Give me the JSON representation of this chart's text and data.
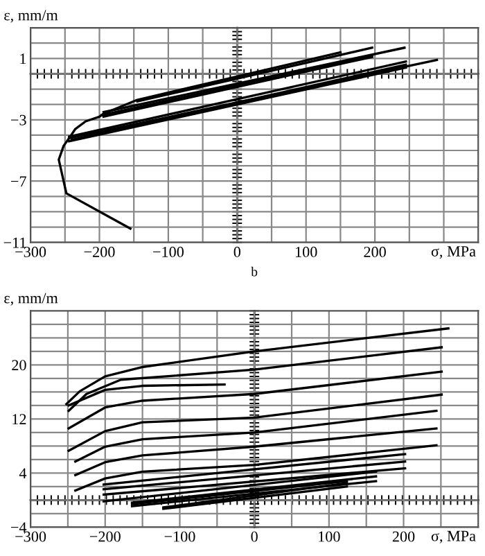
{
  "chart_data": [
    {
      "type": "line",
      "ylabel": "ε, mm/m",
      "xlabel": "σ, MPa",
      "xlim": [
        -300,
        350
      ],
      "ylim": [
        -11,
        3
      ],
      "xticks": [
        -300,
        {
          "value": -250,
          "label": null
        },
        -200,
        {
          "value": -150,
          "label": null
        },
        -100,
        {
          "value": -50,
          "label": null
        },
        0,
        {
          "value": 50,
          "label": null
        },
        100,
        {
          "value": 150,
          "label": null
        },
        200,
        {
          "value": 250,
          "label": null
        },
        {
          "value": 300,
          "label": null
        }
      ],
      "yticks": [
        -11,
        {
          "value": -10,
          "label": null
        },
        {
          "value": -9,
          "label": null
        },
        {
          "value": -8,
          "label": null
        },
        -7,
        {
          "value": -6,
          "label": null
        },
        {
          "value": -5,
          "label": null
        },
        {
          "value": -4,
          "label": null
        },
        -3,
        {
          "value": -2,
          "label": null
        },
        {
          "value": -1,
          "label": null
        },
        {
          "value": 0,
          "label": null
        },
        1,
        {
          "value": 2,
          "label": null
        },
        {
          "value": 3,
          "label": null
        }
      ],
      "grid": true,
      "legend": false,
      "series": [
        {
          "color": "#000000",
          "x": [
            -155,
            -248,
            -259,
            -252,
            -244,
            -235,
            -220,
            -200,
            -194,
            -145,
            150
          ],
          "values": [
            -10.1,
            -7.8,
            -5.6,
            -4.7,
            -4.2,
            -3.6,
            -3.1,
            -2.8,
            -2.6,
            -1.7,
            1.4
          ]
        },
        {
          "color": "#000000",
          "x": [
            -244,
            290
          ],
          "values": [
            -4.2,
            0.9
          ]
        },
        {
          "color": "#000000",
          "x": [
            -244,
            245
          ],
          "values": [
            -4.4,
            0.4
          ]
        },
        {
          "color": "#000000",
          "x": [
            -244,
            245
          ],
          "values": [
            -4.1,
            0.8
          ]
        },
        {
          "color": "#000000",
          "x": [
            -240,
            245
          ],
          "values": [
            -4.3,
            0.6
          ]
        },
        {
          "color": "#000000",
          "x": [
            -197,
            196
          ],
          "values": [
            -2.7,
            1.2
          ]
        },
        {
          "color": "#000000",
          "x": [
            -194,
            196
          ],
          "values": [
            -2.8,
            1.1
          ]
        },
        {
          "color": "#000000",
          "x": [
            -194,
            243
          ],
          "values": [
            -2.5,
            1.7
          ]
        },
        {
          "color": "#000000",
          "x": [
            -145,
            196
          ],
          "values": [
            -1.8,
            1.7
          ]
        }
      ]
    },
    {
      "type": "line",
      "title": "b",
      "ylabel": "ε, mm/m",
      "xlabel": "σ, MPa",
      "xlim": [
        -300,
        300
      ],
      "ylim": [
        -4,
        28
      ],
      "xticks": [
        -300,
        {
          "value": -250,
          "label": null
        },
        -200,
        {
          "value": -150,
          "label": null
        },
        -100,
        {
          "value": -50,
          "label": null
        },
        0,
        {
          "value": 50,
          "label": null
        },
        100,
        {
          "value": 150,
          "label": null
        },
        200,
        {
          "value": 250,
          "label": null
        }
      ],
      "yticks": [
        -4,
        {
          "value": -2,
          "label": null
        },
        {
          "value": 0,
          "label": null
        },
        {
          "value": 2,
          "label": null
        },
        4,
        {
          "value": 6,
          "label": null
        },
        {
          "value": 8,
          "label": null
        },
        {
          "value": 10,
          "label": null
        },
        12,
        {
          "value": 14,
          "label": null
        },
        {
          "value": 16,
          "label": null
        },
        {
          "value": 18,
          "label": null
        },
        20,
        {
          "value": 22,
          "label": null
        },
        {
          "value": 24,
          "label": null
        },
        {
          "value": 26,
          "label": null
        }
      ],
      "grid": true,
      "legend": false,
      "series": [
        {
          "color": "#000000",
          "x": [
            -252,
            -234,
            -200,
            -149,
            0,
            260
          ],
          "values": [
            14.2,
            16.1,
            18.3,
            19.7,
            22.0,
            25.4
          ]
        },
        {
          "color": "#000000",
          "x": [
            -249,
            -225,
            -179,
            0,
            251
          ],
          "values": [
            13.2,
            15.7,
            17.8,
            19.3,
            22.6
          ]
        },
        {
          "color": "#000000",
          "x": [
            -249,
            -200,
            -150,
            -40
          ],
          "values": [
            14.0,
            16.3,
            16.9,
            17.1
          ]
        },
        {
          "color": "#000000",
          "x": [
            -249,
            -200,
            -150,
            0,
            251
          ],
          "values": [
            10.6,
            13.7,
            14.7,
            15.7,
            19.0
          ]
        },
        {
          "color": "#000000",
          "x": [
            -249,
            -200,
            -150,
            0,
            251
          ],
          "values": [
            7.3,
            10.2,
            11.5,
            12.2,
            15.6
          ]
        },
        {
          "color": "#000000",
          "x": [
            -240,
            -200,
            -150,
            0,
            244
          ],
          "values": [
            5.7,
            7.9,
            9.0,
            10.0,
            13.2
          ]
        },
        {
          "color": "#000000",
          "x": [
            -240,
            -200,
            -150,
            0,
            244
          ],
          "values": [
            3.7,
            5.6,
            6.6,
            7.9,
            10.6
          ]
        },
        {
          "color": "#000000",
          "x": [
            -240,
            -200,
            -150,
            0,
            244
          ],
          "values": [
            1.4,
            3.2,
            4.2,
            5.2,
            8.1
          ]
        },
        {
          "color": "#000000",
          "x": [
            -202,
            202
          ],
          "values": [
            2.3,
            6.8
          ]
        },
        {
          "color": "#000000",
          "x": [
            -202,
            202
          ],
          "values": [
            1.6,
            5.7
          ]
        },
        {
          "color": "#000000",
          "x": [
            -202,
            202
          ],
          "values": [
            0.8,
            4.7
          ]
        },
        {
          "color": "#000000",
          "x": [
            -202,
            163
          ],
          "values": [
            -0.2,
            4.2
          ]
        },
        {
          "color": "#000000",
          "x": [
            -164,
            163
          ],
          "values": [
            -0.4,
            3.5
          ]
        },
        {
          "color": "#000000",
          "x": [
            -164,
            163
          ],
          "values": [
            -0.9,
            2.8
          ]
        },
        {
          "color": "#000000",
          "x": [
            -164,
            124
          ],
          "values": [
            -0.6,
            2.8
          ]
        },
        {
          "color": "#000000",
          "x": [
            -122,
            124
          ],
          "values": [
            -1.1,
            2.5
          ]
        },
        {
          "color": "#000000",
          "x": [
            -122,
            124
          ],
          "values": [
            -1.3,
            2.0
          ]
        }
      ]
    }
  ]
}
